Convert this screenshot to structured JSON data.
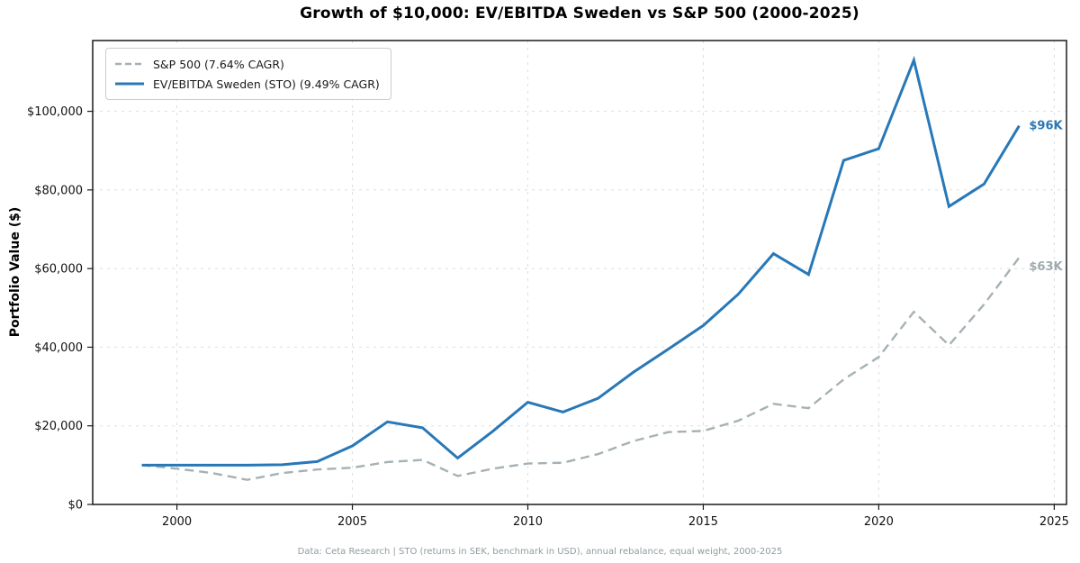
{
  "title": "Growth of $10,000: EV/EBITDA Sweden vs S&P 500 (2000-2025)",
  "footer": "Data: Ceta Research | STO (returns in SEK, benchmark in USD), annual rebalance, equal weight, 2000-2025",
  "y_axis": {
    "label": "Portfolio Value ($)",
    "tick_values": [
      0,
      20000,
      40000,
      60000,
      80000,
      100000
    ],
    "tick_labels": [
      "$0",
      "$20,000",
      "$40,000",
      "$60,000",
      "$80,000",
      "$100,000"
    ]
  },
  "x_axis": {
    "tick_values": [
      2000,
      2005,
      2010,
      2015,
      2020,
      2025
    ],
    "tick_labels": [
      "2000",
      "2005",
      "2010",
      "2015",
      "2020",
      "2025"
    ]
  },
  "legend": [
    {
      "label": "S&P 500 (7.64% CAGR)",
      "color": "#a6b1b5",
      "dash": "7 4"
    },
    {
      "label": "EV/EBITDA Sweden (STO) (9.49% CAGR)",
      "color": "#2878b8",
      "dash": null
    }
  ],
  "annotations": [
    {
      "text": "$96K",
      "color": "#2878b8",
      "series": 1,
      "dy": 4
    },
    {
      "text": "$63K",
      "color": "#a0abaf",
      "series": 0,
      "dy": 14
    }
  ],
  "colors": {
    "grid": "#dddddd",
    "spine": "#1a1a1a",
    "tick_text": "#111111",
    "sp500_line": "#a6b1b5",
    "sweden_line": "#2878b8"
  },
  "chart_data": {
    "type": "line",
    "title": "Growth of $10,000: EV/EBITDA Sweden vs S&P 500 (2000-2025)",
    "xlabel": "",
    "ylabel": "Portfolio Value ($)",
    "x": [
      1999,
      2000,
      2001,
      2002,
      2003,
      2004,
      2005,
      2006,
      2007,
      2008,
      2009,
      2010,
      2011,
      2012,
      2013,
      2014,
      2015,
      2016,
      2017,
      2018,
      2019,
      2020,
      2021,
      2022,
      2023,
      2024
    ],
    "series": [
      {
        "name": "S&P 500 (7.64% CAGR)",
        "color": "#a6b1b5",
        "dash": "10 6",
        "values": [
          10000,
          9100,
          8000,
          6250,
          8000,
          8900,
          9350,
          10800,
          11350,
          7250,
          9100,
          10400,
          10600,
          12800,
          16100,
          18400,
          18700,
          21300,
          25600,
          24500,
          31800,
          37500,
          49000,
          40500,
          50900,
          62800
        ]
      },
      {
        "name": "EV/EBITDA Sweden (STO) (9.49% CAGR)",
        "color": "#2878b8",
        "dash": null,
        "values": [
          10000,
          10000,
          10000,
          10000,
          10100,
          10900,
          14900,
          21000,
          19500,
          11800,
          18600,
          26000,
          23500,
          27000,
          33600,
          39500,
          45500,
          53500,
          63800,
          58500,
          87500,
          90500,
          113000,
          75800,
          81500,
          96300
        ]
      }
    ],
    "xlim": [
      1997.6,
      2025.35
    ],
    "ylim": [
      0,
      118000
    ],
    "grid": true,
    "legend_position": "upper left",
    "end_labels": {
      "sweden": "$96K",
      "sp500": "$63K"
    }
  }
}
